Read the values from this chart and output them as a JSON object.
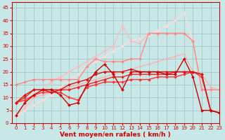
{
  "background_color": "#c8e8e8",
  "grid_color": "#a0c0c0",
  "xlabel": "Vent moyen/en rafales ( km/h )",
  "xlim": [
    -0.5,
    23
  ],
  "ylim": [
    0,
    47
  ],
  "yticks": [
    0,
    5,
    10,
    15,
    20,
    25,
    30,
    35,
    40,
    45
  ],
  "xticks": [
    0,
    1,
    2,
    3,
    4,
    5,
    6,
    7,
    8,
    9,
    10,
    11,
    12,
    13,
    14,
    15,
    16,
    17,
    18,
    19,
    20,
    21,
    22,
    23
  ],
  "lines": [
    {
      "x": [
        0,
        1,
        2,
        3,
        4,
        5,
        6,
        7,
        8,
        9,
        10,
        11,
        12,
        13,
        14,
        15,
        16,
        17,
        18,
        19,
        20,
        21,
        22,
        23
      ],
      "y": [
        3,
        8,
        11,
        13,
        13,
        11,
        7,
        8,
        15,
        20,
        23,
        19,
        13,
        20,
        20,
        20,
        20,
        19,
        19,
        25,
        18,
        5,
        5,
        4
      ],
      "color": "#cc0000",
      "marker": "D",
      "lw": 1.0,
      "ms": 2.0
    },
    {
      "x": [
        0,
        1,
        2,
        3,
        4,
        5,
        6,
        7,
        8,
        9,
        10,
        11,
        12,
        13,
        14,
        15,
        16,
        17,
        18,
        19,
        20,
        21,
        22,
        23
      ],
      "y": [
        8,
        11,
        13,
        13,
        12,
        13,
        15,
        16,
        17,
        19,
        20,
        20,
        20,
        21,
        20,
        20,
        20,
        20,
        20,
        20,
        20,
        19,
        5,
        4
      ],
      "color": "#dd1111",
      "marker": "D",
      "lw": 1.0,
      "ms": 2.0
    },
    {
      "x": [
        0,
        1,
        2,
        3,
        4,
        5,
        6,
        7,
        8,
        9,
        10,
        11,
        12,
        13,
        14,
        15,
        16,
        17,
        18,
        19,
        20,
        21,
        22,
        23
      ],
      "y": [
        8,
        10,
        13,
        13,
        13,
        13,
        13,
        14,
        15,
        16,
        17,
        18,
        18,
        19,
        19,
        19,
        19,
        19,
        20,
        20,
        20,
        19,
        5,
        4
      ],
      "color": "#ee2222",
      "marker": "D",
      "lw": 1.0,
      "ms": 2.0
    },
    {
      "x": [
        0,
        1,
        2,
        3,
        4,
        5,
        6,
        7,
        8,
        9,
        10,
        11,
        12,
        13,
        14,
        15,
        16,
        17,
        18,
        19,
        20,
        21,
        22,
        23
      ],
      "y": [
        8,
        9,
        11,
        12,
        12,
        12,
        10,
        9,
        14,
        15,
        16,
        16,
        16,
        17,
        17,
        17,
        18,
        18,
        18,
        19,
        20,
        18,
        5,
        4
      ],
      "color": "#ff3333",
      "marker": "D",
      "lw": 1.0,
      "ms": 2.0
    },
    {
      "x": [
        0,
        1,
        2,
        3,
        4,
        5,
        6,
        7,
        8,
        9,
        10,
        11,
        12,
        13,
        14,
        15,
        16,
        17,
        18,
        19,
        20,
        21,
        22,
        23
      ],
      "y": [
        8,
        9,
        10,
        11,
        12,
        13,
        14,
        15,
        16,
        17,
        18,
        19,
        20,
        21,
        22,
        23,
        24,
        25,
        26,
        27,
        20,
        19,
        14,
        13
      ],
      "color": "#ffaaaa",
      "marker": "D",
      "lw": 0.8,
      "ms": 1.5
    },
    {
      "x": [
        0,
        1,
        2,
        3,
        4,
        5,
        6,
        7,
        8,
        9,
        10,
        11,
        12,
        13,
        14,
        15,
        16,
        17,
        18,
        19,
        20,
        21,
        22,
        23
      ],
      "y": [
        15,
        16,
        17,
        17,
        17,
        17,
        17,
        17,
        22,
        25,
        24,
        24,
        24,
        25,
        25,
        35,
        35,
        35,
        35,
        35,
        32,
        13,
        13,
        13
      ],
      "color": "#ff8888",
      "marker": "D",
      "lw": 1.0,
      "ms": 2.0
    },
    {
      "x": [
        0,
        1,
        2,
        3,
        4,
        5,
        6,
        7,
        8,
        9,
        10,
        11,
        12,
        13,
        14,
        15,
        16,
        17,
        18,
        19,
        20,
        21,
        22,
        23
      ],
      "y": [
        3,
        6,
        10,
        13,
        16,
        18,
        20,
        22,
        24,
        26,
        28,
        30,
        38,
        32,
        31,
        35,
        35,
        35,
        35,
        35,
        32,
        13,
        13,
        13
      ],
      "color": "#ffbbbb",
      "marker": "D",
      "lw": 1.0,
      "ms": 2.0
    },
    {
      "x": [
        0,
        1,
        2,
        3,
        4,
        5,
        6,
        7,
        8,
        9,
        10,
        11,
        12,
        13,
        14,
        15,
        16,
        17,
        18,
        19,
        20,
        21,
        22,
        23
      ],
      "y": [
        3,
        5,
        7,
        9,
        11,
        14,
        17,
        19,
        22,
        24,
        26,
        28,
        30,
        32,
        33,
        34,
        36,
        38,
        40,
        43,
        32,
        13,
        13,
        13
      ],
      "color": "#ffdddd",
      "marker": "D",
      "lw": 1.0,
      "ms": 2.0
    }
  ],
  "tick_color": "#cc0000",
  "label_color": "#cc0000",
  "tick_fontsize": 5.0,
  "label_fontsize": 6.5
}
